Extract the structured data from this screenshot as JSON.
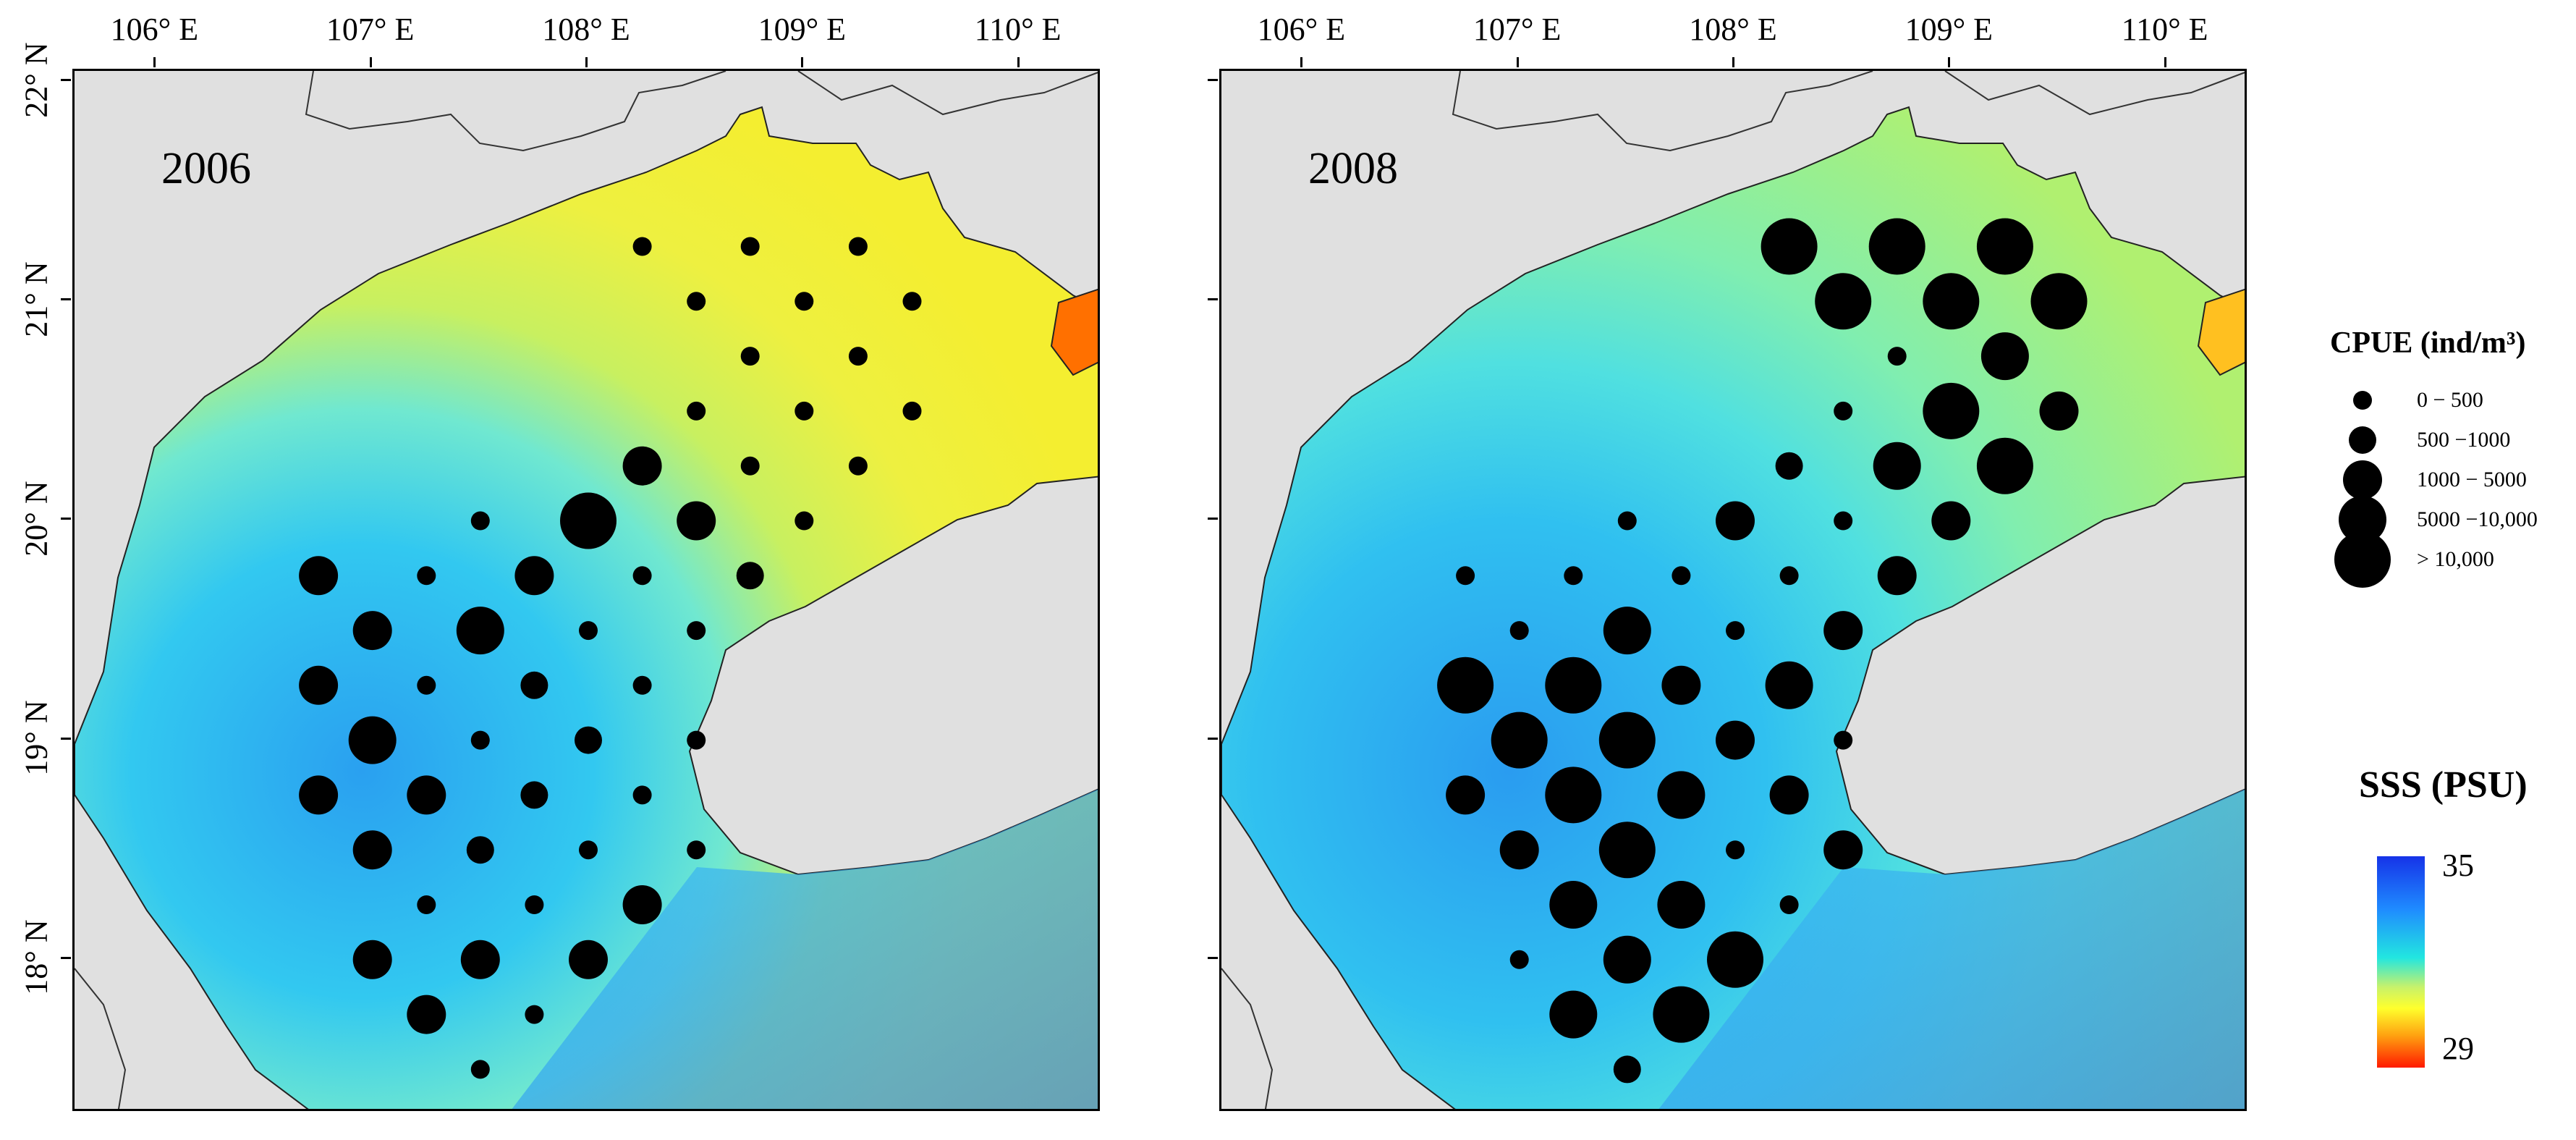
{
  "panels": [
    {
      "year": "2006",
      "sss": {
        "gulf_color": "#f0f03a",
        "coast_color": "#c8f060",
        "deep_color": "#2aa8f0",
        "hotspot_color": "#ff6a00"
      },
      "stations": [
        {
          "lon": 108.25,
          "lat": 21.25,
          "cls": 1
        },
        {
          "lon": 108.75,
          "lat": 21.25,
          "cls": 1
        },
        {
          "lon": 109.25,
          "lat": 21.25,
          "cls": 1
        },
        {
          "lon": 108.5,
          "lat": 21.0,
          "cls": 1
        },
        {
          "lon": 109.0,
          "lat": 21.0,
          "cls": 1
        },
        {
          "lon": 109.5,
          "lat": 21.0,
          "cls": 1
        },
        {
          "lon": 108.75,
          "lat": 20.75,
          "cls": 1
        },
        {
          "lon": 109.25,
          "lat": 20.75,
          "cls": 1
        },
        {
          "lon": 108.5,
          "lat": 20.5,
          "cls": 1
        },
        {
          "lon": 109.0,
          "lat": 20.5,
          "cls": 1
        },
        {
          "lon": 109.5,
          "lat": 20.5,
          "cls": 1
        },
        {
          "lon": 108.25,
          "lat": 20.25,
          "cls": 3
        },
        {
          "lon": 108.75,
          "lat": 20.25,
          "cls": 1
        },
        {
          "lon": 109.25,
          "lat": 20.25,
          "cls": 1
        },
        {
          "lon": 107.5,
          "lat": 20.0,
          "cls": 1
        },
        {
          "lon": 108.0,
          "lat": 20.0,
          "cls": 5
        },
        {
          "lon": 108.5,
          "lat": 20.0,
          "cls": 3
        },
        {
          "lon": 109.0,
          "lat": 20.0,
          "cls": 1
        },
        {
          "lon": 106.75,
          "lat": 19.75,
          "cls": 3
        },
        {
          "lon": 107.25,
          "lat": 19.75,
          "cls": 1
        },
        {
          "lon": 107.75,
          "lat": 19.75,
          "cls": 3
        },
        {
          "lon": 108.25,
          "lat": 19.75,
          "cls": 1
        },
        {
          "lon": 108.75,
          "lat": 19.75,
          "cls": 2
        },
        {
          "lon": 107.0,
          "lat": 19.5,
          "cls": 3
        },
        {
          "lon": 107.5,
          "lat": 19.5,
          "cls": 4
        },
        {
          "lon": 108.0,
          "lat": 19.5,
          "cls": 1
        },
        {
          "lon": 108.5,
          "lat": 19.5,
          "cls": 1
        },
        {
          "lon": 106.75,
          "lat": 19.25,
          "cls": 3
        },
        {
          "lon": 107.25,
          "lat": 19.25,
          "cls": 1
        },
        {
          "lon": 107.75,
          "lat": 19.25,
          "cls": 2
        },
        {
          "lon": 108.25,
          "lat": 19.25,
          "cls": 1
        },
        {
          "lon": 107.0,
          "lat": 19.0,
          "cls": 4
        },
        {
          "lon": 107.5,
          "lat": 19.0,
          "cls": 1
        },
        {
          "lon": 108.0,
          "lat": 19.0,
          "cls": 2
        },
        {
          "lon": 108.5,
          "lat": 19.0,
          "cls": 1
        },
        {
          "lon": 106.75,
          "lat": 18.75,
          "cls": 3
        },
        {
          "lon": 107.25,
          "lat": 18.75,
          "cls": 3
        },
        {
          "lon": 107.75,
          "lat": 18.75,
          "cls": 2
        },
        {
          "lon": 108.25,
          "lat": 18.75,
          "cls": 1
        },
        {
          "lon": 107.0,
          "lat": 18.5,
          "cls": 3
        },
        {
          "lon": 107.5,
          "lat": 18.5,
          "cls": 2
        },
        {
          "lon": 108.0,
          "lat": 18.5,
          "cls": 1
        },
        {
          "lon": 108.5,
          "lat": 18.5,
          "cls": 1
        },
        {
          "lon": 107.25,
          "lat": 18.25,
          "cls": 1
        },
        {
          "lon": 107.75,
          "lat": 18.25,
          "cls": 1
        },
        {
          "lon": 108.25,
          "lat": 18.25,
          "cls": 3
        },
        {
          "lon": 107.0,
          "lat": 18.0,
          "cls": 3
        },
        {
          "lon": 107.5,
          "lat": 18.0,
          "cls": 3
        },
        {
          "lon": 108.0,
          "lat": 18.0,
          "cls": 3
        },
        {
          "lon": 107.25,
          "lat": 17.75,
          "cls": 3
        },
        {
          "lon": 107.75,
          "lat": 17.75,
          "cls": 1
        },
        {
          "lon": 107.5,
          "lat": 17.5,
          "cls": 1
        }
      ]
    },
    {
      "year": "2008",
      "sss": {
        "gulf_color": "#a8f070",
        "coast_color": "#70f0a0",
        "deep_color": "#2aa8f0",
        "hotspot_color": "#ffb000"
      },
      "stations": [
        {
          "lon": 108.25,
          "lat": 21.25,
          "cls": 5
        },
        {
          "lon": 108.75,
          "lat": 21.25,
          "cls": 5
        },
        {
          "lon": 109.25,
          "lat": 21.25,
          "cls": 5
        },
        {
          "lon": 108.5,
          "lat": 21.0,
          "cls": 5
        },
        {
          "lon": 109.0,
          "lat": 21.0,
          "cls": 5
        },
        {
          "lon": 109.5,
          "lat": 21.0,
          "cls": 5
        },
        {
          "lon": 108.75,
          "lat": 20.75,
          "cls": 1
        },
        {
          "lon": 109.25,
          "lat": 20.75,
          "cls": 4
        },
        {
          "lon": 108.5,
          "lat": 20.5,
          "cls": 1
        },
        {
          "lon": 109.0,
          "lat": 20.5,
          "cls": 5
        },
        {
          "lon": 109.5,
          "lat": 20.5,
          "cls": 3
        },
        {
          "lon": 108.25,
          "lat": 20.25,
          "cls": 2
        },
        {
          "lon": 108.75,
          "lat": 20.25,
          "cls": 4
        },
        {
          "lon": 109.25,
          "lat": 20.25,
          "cls": 5
        },
        {
          "lon": 107.5,
          "lat": 20.0,
          "cls": 1
        },
        {
          "lon": 108.0,
          "lat": 20.0,
          "cls": 3
        },
        {
          "lon": 108.5,
          "lat": 20.0,
          "cls": 1
        },
        {
          "lon": 109.0,
          "lat": 20.0,
          "cls": 3
        },
        {
          "lon": 106.75,
          "lat": 19.75,
          "cls": 1
        },
        {
          "lon": 107.25,
          "lat": 19.75,
          "cls": 1
        },
        {
          "lon": 107.75,
          "lat": 19.75,
          "cls": 1
        },
        {
          "lon": 108.25,
          "lat": 19.75,
          "cls": 1
        },
        {
          "lon": 108.75,
          "lat": 19.75,
          "cls": 3
        },
        {
          "lon": 107.0,
          "lat": 19.5,
          "cls": 1
        },
        {
          "lon": 107.5,
          "lat": 19.5,
          "cls": 4
        },
        {
          "lon": 108.0,
          "lat": 19.5,
          "cls": 1
        },
        {
          "lon": 108.5,
          "lat": 19.5,
          "cls": 3
        },
        {
          "lon": 106.75,
          "lat": 19.25,
          "cls": 5
        },
        {
          "lon": 107.25,
          "lat": 19.25,
          "cls": 5
        },
        {
          "lon": 107.75,
          "lat": 19.25,
          "cls": 3
        },
        {
          "lon": 108.25,
          "lat": 19.25,
          "cls": 4
        },
        {
          "lon": 107.0,
          "lat": 19.0,
          "cls": 5
        },
        {
          "lon": 107.5,
          "lat": 19.0,
          "cls": 5
        },
        {
          "lon": 108.0,
          "lat": 19.0,
          "cls": 3
        },
        {
          "lon": 108.5,
          "lat": 19.0,
          "cls": 1
        },
        {
          "lon": 106.75,
          "lat": 18.75,
          "cls": 3
        },
        {
          "lon": 107.25,
          "lat": 18.75,
          "cls": 5
        },
        {
          "lon": 107.75,
          "lat": 18.75,
          "cls": 4
        },
        {
          "lon": 108.25,
          "lat": 18.75,
          "cls": 3
        },
        {
          "lon": 107.0,
          "lat": 18.5,
          "cls": 3
        },
        {
          "lon": 107.5,
          "lat": 18.5,
          "cls": 5
        },
        {
          "lon": 108.0,
          "lat": 18.5,
          "cls": 1
        },
        {
          "lon": 108.5,
          "lat": 18.5,
          "cls": 3
        },
        {
          "lon": 107.25,
          "lat": 18.25,
          "cls": 4
        },
        {
          "lon": 107.75,
          "lat": 18.25,
          "cls": 4
        },
        {
          "lon": 108.25,
          "lat": 18.25,
          "cls": 1
        },
        {
          "lon": 107.0,
          "lat": 18.0,
          "cls": 1
        },
        {
          "lon": 107.5,
          "lat": 18.0,
          "cls": 4
        },
        {
          "lon": 108.0,
          "lat": 18.0,
          "cls": 5
        },
        {
          "lon": 107.25,
          "lat": 17.75,
          "cls": 4
        },
        {
          "lon": 107.75,
          "lat": 17.75,
          "cls": 5
        },
        {
          "lon": 107.5,
          "lat": 17.5,
          "cls": 2
        }
      ]
    }
  ],
  "axes": {
    "lon_ticks": [
      106,
      107,
      108,
      109,
      110
    ],
    "lat_ticks": [
      22,
      21,
      20,
      19,
      18
    ],
    "lon_labels": [
      "106° E",
      "107° E",
      "108° E",
      "109° E",
      "110° E"
    ],
    "lat_labels": [
      "22° N",
      "21° N",
      "20° N",
      "19° N",
      "18° N"
    ],
    "lon_range": [
      105.62,
      110.38
    ],
    "lat_range": [
      22.05,
      17.3
    ]
  },
  "cpue_legend": {
    "title": "CPUE (ind/m³)",
    "classes": [
      {
        "cls": 1,
        "label": "0 − 500"
      },
      {
        "cls": 2,
        "label": "500 −1000"
      },
      {
        "cls": 3,
        "label": "1000 − 5000"
      },
      {
        "cls": 4,
        "label": "5000 −10,000"
      },
      {
        "cls": 5,
        "label": "> 10,000"
      }
    ]
  },
  "sss_legend": {
    "title": "SSS (PSU)",
    "max_label": "35",
    "min_label": "29"
  },
  "colors": {
    "land": "#e0e0e0",
    "coastline": "#222222",
    "station": "#000000"
  }
}
